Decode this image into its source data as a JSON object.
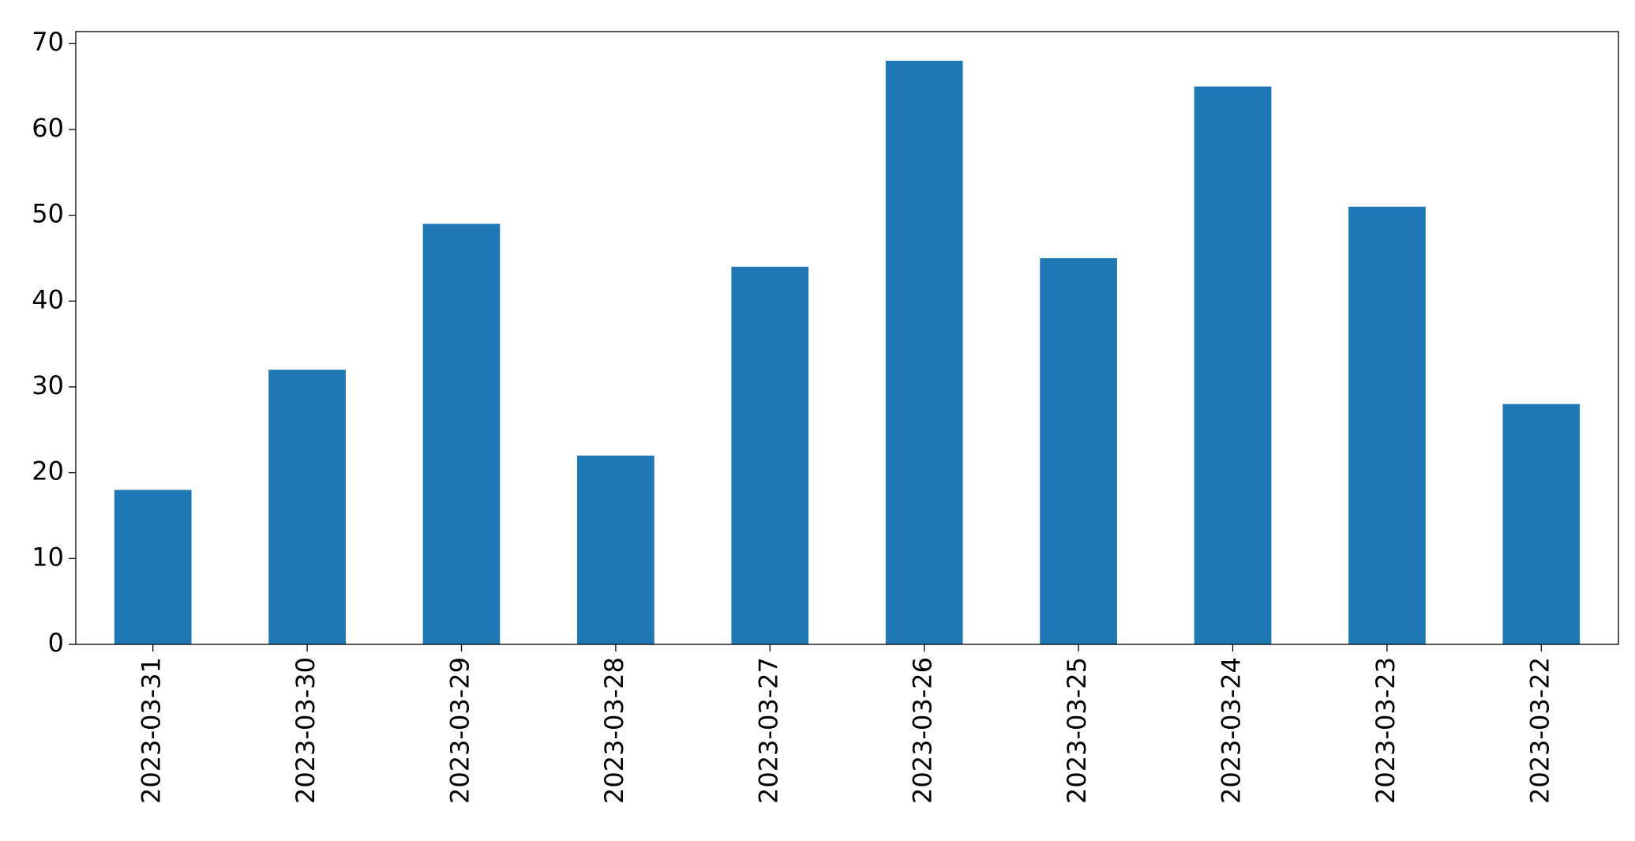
{
  "chart_data": {
    "type": "bar",
    "categories": [
      "2023-03-31",
      "2023-03-30",
      "2023-03-29",
      "2023-03-28",
      "2023-03-27",
      "2023-03-26",
      "2023-03-25",
      "2023-03-24",
      "2023-03-23",
      "2023-03-22"
    ],
    "values": [
      18,
      32,
      49,
      22,
      44,
      68,
      45,
      65,
      51,
      28
    ],
    "color": "#1f77b4",
    "ylim": [
      0,
      71.4
    ],
    "yticks": [
      0,
      10,
      20,
      30,
      40,
      50,
      60,
      70
    ],
    "grid": false
  }
}
